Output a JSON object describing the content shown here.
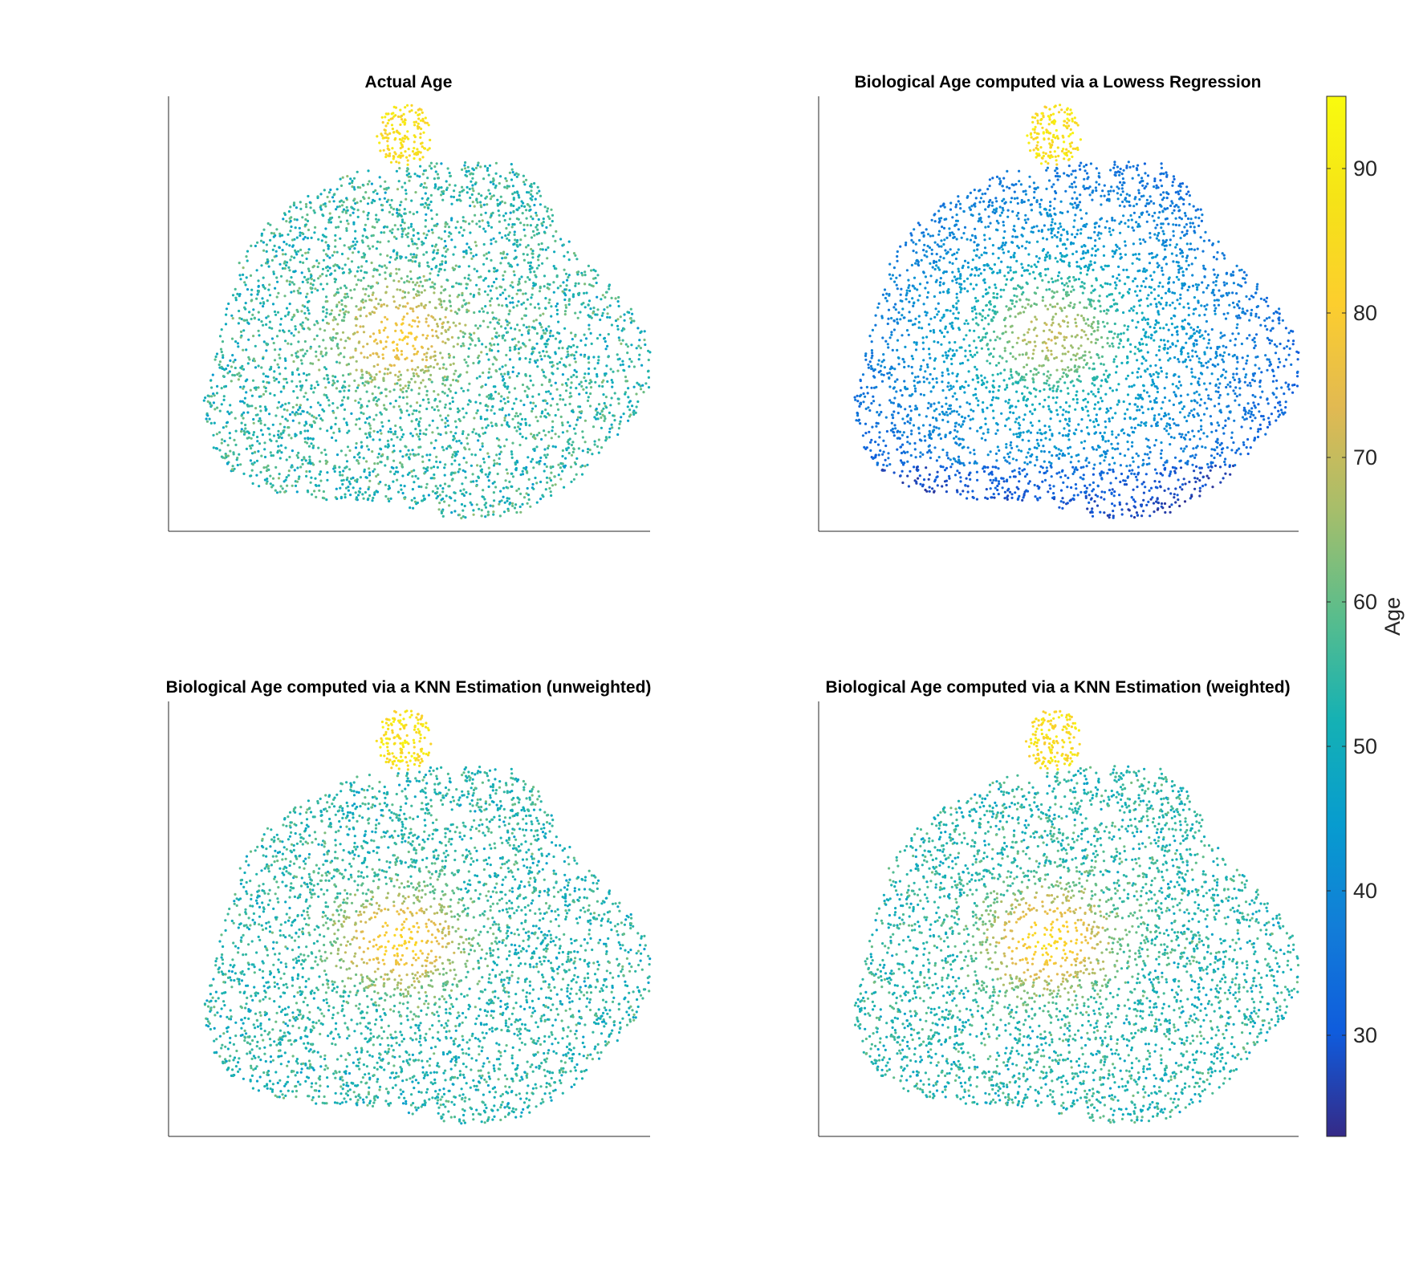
{
  "chart_data": {
    "type": "scatter",
    "description_note": "",
    "colormap": "parula",
    "clim": [
      23,
      95
    ],
    "colorbar": {
      "label": "Age",
      "ticks": [
        30,
        40,
        50,
        60,
        70,
        80,
        90
      ],
      "location": "right"
    },
    "axes_visible": {
      "ticks": false,
      "grid": false
    },
    "panels": [
      {
        "title": "Actual Age",
        "model": "actual",
        "hotspots": [
          {
            "name": "top-cluster",
            "value": 85
          },
          {
            "name": "center",
            "value": 80
          }
        ],
        "base_range": [
          46,
          62
        ]
      },
      {
        "title": "Biological Age computed via a Lowess Regression",
        "model": "lowess",
        "hotspots": [
          {
            "name": "top-cluster",
            "value": 87
          },
          {
            "name": "center",
            "value": 70
          }
        ],
        "base_range": [
          30,
          55
        ]
      },
      {
        "title": "Biological Age computed via a KNN Estimation (unweighted)",
        "model": "knn_unweighted",
        "hotspots": [
          {
            "name": "top-cluster",
            "value": 87
          },
          {
            "name": "center",
            "value": 83
          }
        ],
        "base_range": [
          47,
          60
        ]
      },
      {
        "title": "Biological Age computed via a KNN Estimation (weighted)",
        "model": "knn_weighted",
        "hotspots": [
          {
            "name": "top-cluster",
            "value": 86
          },
          {
            "name": "center",
            "value": 85
          }
        ],
        "base_range": [
          47,
          60
        ]
      }
    ]
  }
}
